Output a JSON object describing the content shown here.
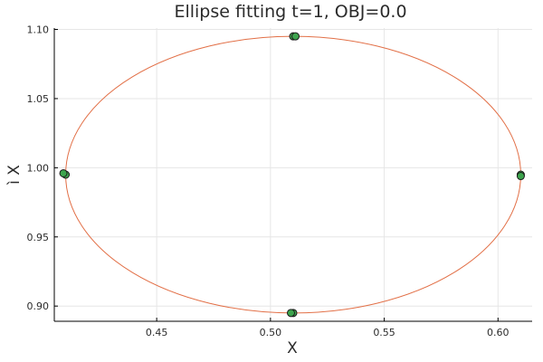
{
  "chart_data": {
    "type": "scatter",
    "title": "Ellipse fitting t=1, OBJ=0.0",
    "xlabel": "X",
    "ylabel": "ì X",
    "xlim": [
      0.405,
      0.615
    ],
    "ylim": [
      0.889,
      1.101
    ],
    "xticks": [
      0.45,
      0.5,
      0.55,
      0.6
    ],
    "xtick_labels": [
      "0.45",
      "0.50",
      "0.55",
      "0.60"
    ],
    "yticks": [
      0.9,
      0.95,
      1.0,
      1.05,
      1.1
    ],
    "ytick_labels": [
      "0.90",
      "0.95",
      "1.00",
      "1.05",
      "1.10"
    ],
    "grid": true,
    "legend": "none",
    "ellipse": {
      "cx": 0.51,
      "cy": 0.995,
      "rx": 0.1,
      "ry": 0.1
    },
    "ellipse_color": "#e26f46",
    "points": [
      {
        "x": 0.41,
        "y": 0.995
      },
      {
        "x": 0.409,
        "y": 0.996
      },
      {
        "x": 0.51,
        "y": 1.095
      },
      {
        "x": 0.511,
        "y": 1.095
      },
      {
        "x": 0.61,
        "y": 0.995
      },
      {
        "x": 0.61,
        "y": 0.994
      },
      {
        "x": 0.51,
        "y": 0.895
      },
      {
        "x": 0.509,
        "y": 0.895
      }
    ],
    "point_color": "#3da44d",
    "point_edge_color": "#1a1a1a"
  }
}
